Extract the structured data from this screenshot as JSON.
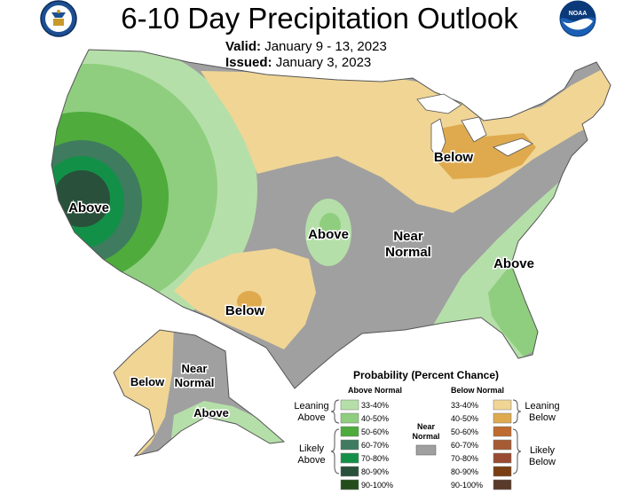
{
  "title": "6-10 Day Precipitation Outlook",
  "valid": {
    "label": "Valid:",
    "value": "January 9 - 13, 2023"
  },
  "issued": {
    "label": "Issued:",
    "value": "January 3, 2023"
  },
  "logos": {
    "left": "doc-seal-icon",
    "right": "noaa-logo-icon"
  },
  "region_labels": {
    "west_above": "Above",
    "plains_above": "Above",
    "near_normal_1": "Near",
    "near_normal_2": "Normal",
    "southeast_above": "Above",
    "northeast_below": "Below",
    "southwest_below": "Below",
    "alaska_below": "Below",
    "alaska_near_1": "Near",
    "alaska_near_2": "Normal",
    "alaska_above": "Above"
  },
  "legend": {
    "title": "Probability (Percent Chance)",
    "above_header": "Above Normal",
    "below_header": "Below Normal",
    "near_label_1": "Near",
    "near_label_2": "Normal",
    "near_color": "#a0a0a0",
    "leaning_above_1": "Leaning",
    "leaning_above_2": "Above",
    "likely_above_1": "Likely",
    "likely_above_2": "Above",
    "leaning_below_1": "Leaning",
    "leaning_below_2": "Below",
    "likely_below_1": "Likely",
    "likely_below_2": "Below",
    "above_classes": [
      {
        "range": "33-40%",
        "color": "#b5dfa9"
      },
      {
        "range": "40-50%",
        "color": "#8fce7e"
      },
      {
        "range": "50-60%",
        "color": "#4eab3c"
      },
      {
        "range": "60-70%",
        "color": "#3f7b5f"
      },
      {
        "range": "70-80%",
        "color": "#139048"
      },
      {
        "range": "80-90%",
        "color": "#28503a"
      },
      {
        "range": "90-100%",
        "color": "#244d1c"
      }
    ],
    "below_classes": [
      {
        "range": "33-40%",
        "color": "#f0d595"
      },
      {
        "range": "40-50%",
        "color": "#dfaa4e"
      },
      {
        "range": "50-60%",
        "color": "#bf6a2f"
      },
      {
        "range": "60-70%",
        "color": "#a65b34"
      },
      {
        "range": "70-80%",
        "color": "#9a4a32"
      },
      {
        "range": "80-90%",
        "color": "#7a3e12"
      },
      {
        "range": "90-100%",
        "color": "#5a3a2a"
      }
    ]
  }
}
